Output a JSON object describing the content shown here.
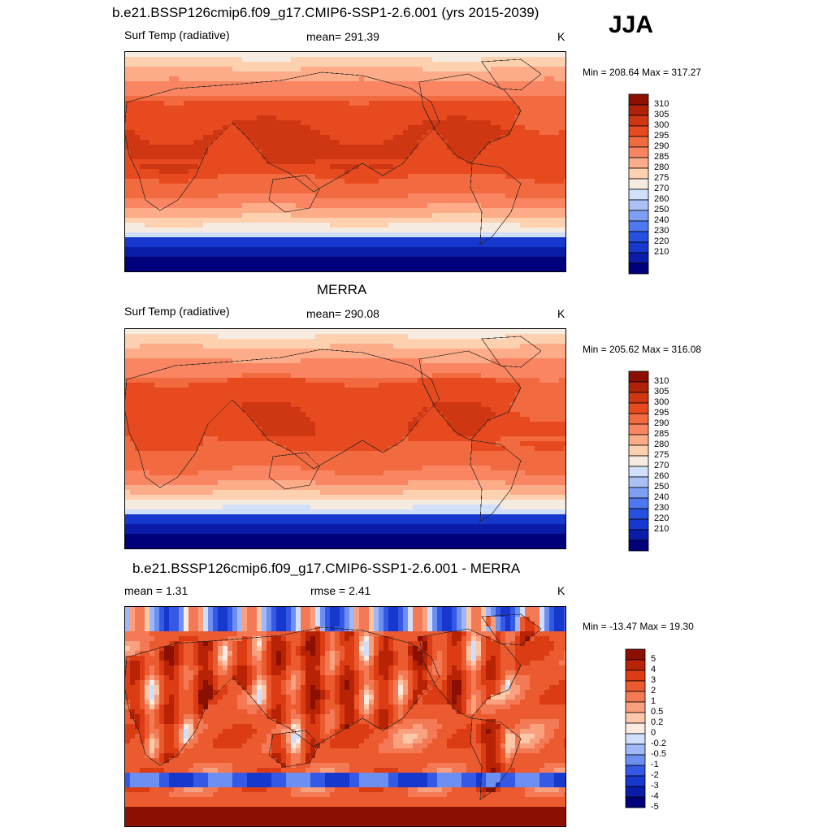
{
  "season": "JJA",
  "colors": {
    "abs_levels": [
      "#00007a",
      "#0a1ca8",
      "#1638cc",
      "#2550e0",
      "#4d78ef",
      "#7e9ff5",
      "#aac1f8",
      "#d0e0fa",
      "#f6ebe0",
      "#fdd0b0",
      "#fcac88",
      "#f98562",
      "#f26a40",
      "#e84a20",
      "#cf3712",
      "#b02208",
      "#8c1002"
    ],
    "diff_levels": [
      "#00007a",
      "#0a1ca8",
      "#1638cc",
      "#3558e5",
      "#6d8ff2",
      "#a0b8f8",
      "#d0dffb",
      "#fbeadf",
      "#fcc8a8",
      "#f9a07e",
      "#f47a55",
      "#ec5a30",
      "#dc3c14",
      "#b82306",
      "#8c1002"
    ]
  },
  "chart_data": [
    {
      "type": "heatmap",
      "title": "b.e21.BSSP126cmip6.f09_g17.CMIP6-SSP1-2.6.001 (yrs 2015-2039)",
      "left_label": "Surf Temp (radiative)",
      "center_label": "mean= 291.39",
      "units": "K",
      "min_max": "Min = 208.64 Max = 317.27",
      "mean": 291.39,
      "min": 208.64,
      "max": 317.27,
      "colorbar_ticks": [
        "310",
        "305",
        "300",
        "295",
        "290",
        "285",
        "280",
        "275",
        "270",
        "260",
        "250",
        "240",
        "230",
        "220",
        "210"
      ]
    },
    {
      "type": "heatmap",
      "title": "MERRA",
      "left_label": "Surf Temp (radiative)",
      "center_label": "mean= 290.08",
      "units": "K",
      "min_max": "Min = 205.62 Max = 316.08",
      "mean": 290.08,
      "min": 205.62,
      "max": 316.08,
      "colorbar_ticks": [
        "310",
        "305",
        "300",
        "295",
        "290",
        "285",
        "280",
        "275",
        "270",
        "260",
        "250",
        "240",
        "230",
        "220",
        "210"
      ]
    },
    {
      "type": "heatmap",
      "title": "b.e21.BSSP126cmip6.f09_g17.CMIP6-SSP1-2.6.001 - MERRA",
      "left_label": "mean =   1.31",
      "center_label": "rmse =   2.41",
      "units": "K",
      "min_max": "Min = -13.47 Max =  19.30",
      "mean": 1.31,
      "rmse": 2.41,
      "min": -13.47,
      "max": 19.3,
      "colorbar_ticks": [
        "5",
        "4",
        "3",
        "2",
        "1",
        "0.5",
        "0.2",
        "0",
        "-0.2",
        "-0.5",
        "-1",
        "-2",
        "-3",
        "-4",
        "-5"
      ]
    }
  ]
}
